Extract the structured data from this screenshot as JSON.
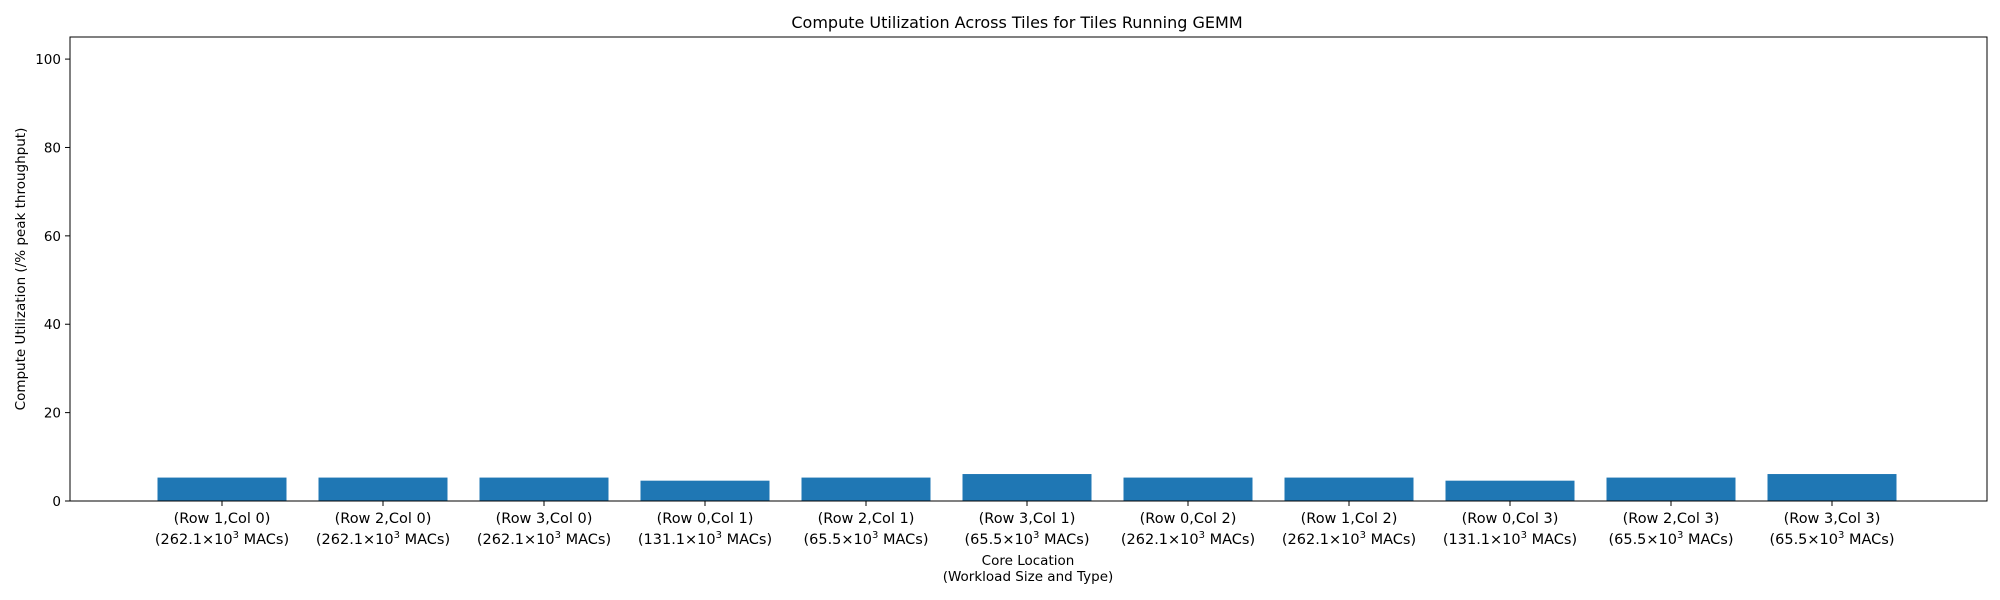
{
  "chart_data": {
    "type": "bar",
    "title": "Compute Utilization Across Tiles for Tiles Running GEMM",
    "ylabel": "Compute Utilization (/% peak throughput)",
    "xlabel_line1": "Core Location",
    "xlabel_line2": "(Workload Size and Type)",
    "ylim": [
      0,
      105
    ],
    "yticks": [
      0,
      20,
      40,
      60,
      80,
      100
    ],
    "bar_color": "#1f77b4",
    "grid": false,
    "categories": [
      {
        "line1": "(Row 1,Col 0)",
        "mac": "262.1"
      },
      {
        "line1": "(Row 2,Col 0)",
        "mac": "262.1"
      },
      {
        "line1": "(Row 3,Col 0)",
        "mac": "262.1"
      },
      {
        "line1": "(Row 0,Col 1)",
        "mac": "131.1"
      },
      {
        "line1": "(Row 2,Col 1)",
        "mac": "65.5"
      },
      {
        "line1": "(Row 3,Col 1)",
        "mac": "65.5"
      },
      {
        "line1": "(Row 0,Col 2)",
        "mac": "262.1"
      },
      {
        "line1": "(Row 1,Col 2)",
        "mac": "262.1"
      },
      {
        "line1": "(Row 0,Col 3)",
        "mac": "131.1"
      },
      {
        "line1": "(Row 2,Col 3)",
        "mac": "65.5"
      },
      {
        "line1": "(Row 3,Col 3)",
        "mac": "65.5"
      }
    ],
    "values": [
      5.3,
      5.3,
      5.3,
      4.6,
      5.3,
      6.1,
      5.3,
      5.3,
      4.6,
      5.3,
      6.1
    ]
  }
}
